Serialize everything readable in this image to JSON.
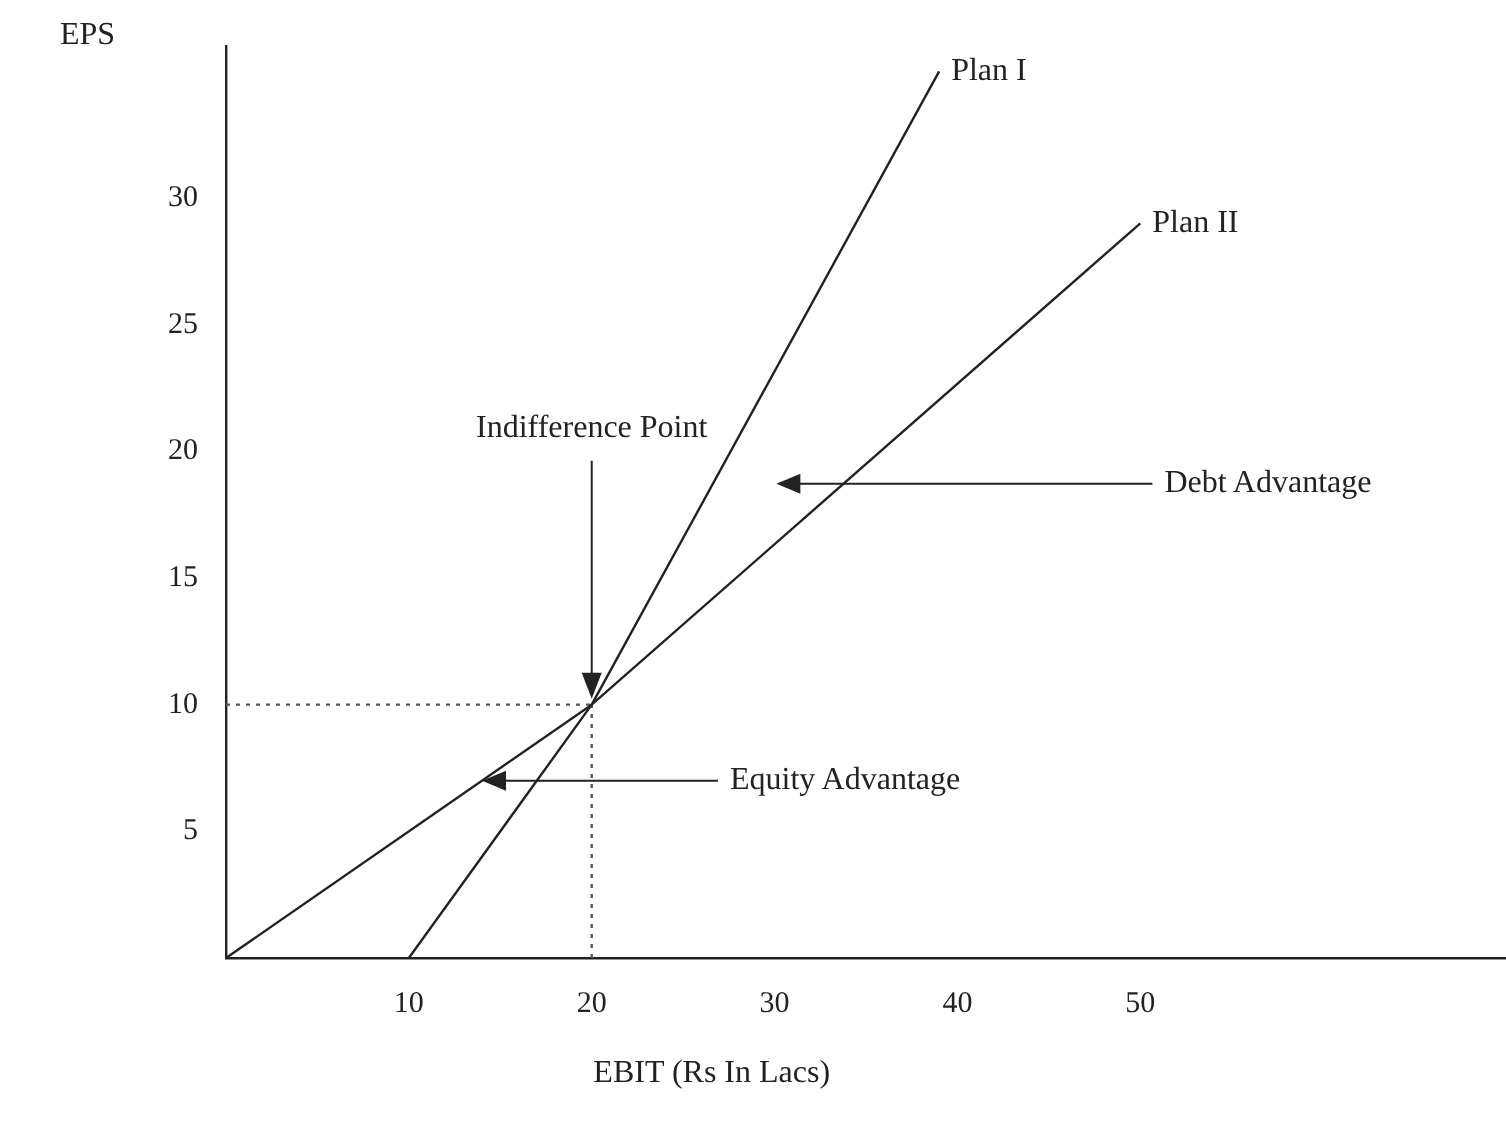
{
  "chart_data": {
    "type": "line",
    "xlabel": "EBIT (Rs In Lacs)",
    "ylabel": "EPS",
    "xlim": [
      0,
      70
    ],
    "ylim": [
      0,
      36
    ],
    "xticks": [
      10,
      20,
      30,
      40,
      50
    ],
    "yticks": [
      5,
      10,
      15,
      20,
      25,
      30
    ],
    "grid": false,
    "legend": false,
    "marker": "none",
    "line_style": "solid",
    "series": [
      {
        "name": "Plan I",
        "color": "#222222",
        "x": [
          10,
          20,
          39
        ],
        "values": [
          0,
          10,
          35
        ]
      },
      {
        "name": "Plan II",
        "color": "#222222",
        "x": [
          0,
          20,
          50
        ],
        "values": [
          0,
          10,
          29
        ]
      },
      {
        "color": "#555555",
        "line_style": "dotted",
        "x": [
          0,
          20
        ],
        "values": [
          10,
          10
        ]
      },
      {
        "color": "#555555",
        "line_style": "dotted",
        "x": [
          20,
          20
        ],
        "values": [
          0,
          10
        ]
      }
    ],
    "annotations": [
      {
        "text": "Indifference Point",
        "x": 20,
        "y": 10
      },
      "Debt Advantage",
      {
        "text": "Equity Advantage",
        "x": 14,
        "y": 7
      }
    ]
  }
}
